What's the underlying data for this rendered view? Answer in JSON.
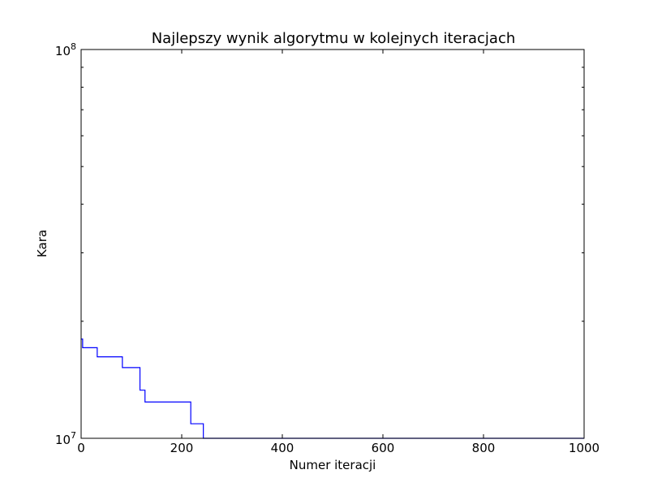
{
  "chart_data": {
    "type": "line",
    "title": "Najlepszy wynik algorytmu w kolejnych iteracjach",
    "xlabel": "Numer iteracji",
    "ylabel": "Kara",
    "xlim": [
      0,
      1000
    ],
    "ylim": [
      10000000,
      100000000
    ],
    "yscale": "log",
    "grid": false,
    "x_ticks": [
      {
        "value": 0,
        "label": "0"
      },
      {
        "value": 200,
        "label": "200"
      },
      {
        "value": 400,
        "label": "400"
      },
      {
        "value": 600,
        "label": "600"
      },
      {
        "value": 800,
        "label": "800"
      },
      {
        "value": 1000,
        "label": "1000"
      }
    ],
    "y_ticks": [
      {
        "value": 10000000,
        "base": "10",
        "exp": "7"
      },
      {
        "value": 100000000,
        "base": "10",
        "exp": "8"
      }
    ],
    "series": [
      {
        "color": "#0000ff",
        "step": true,
        "points": [
          {
            "x": 0,
            "y": 18000000
          },
          {
            "x": 3,
            "y": 17100000
          },
          {
            "x": 32,
            "y": 16200000
          },
          {
            "x": 82,
            "y": 15200000
          },
          {
            "x": 117,
            "y": 13300000
          },
          {
            "x": 127,
            "y": 12400000
          },
          {
            "x": 218,
            "y": 10900000
          },
          {
            "x": 243,
            "y": 10000000
          },
          {
            "x": 1000,
            "y": 10000000
          }
        ]
      }
    ]
  }
}
